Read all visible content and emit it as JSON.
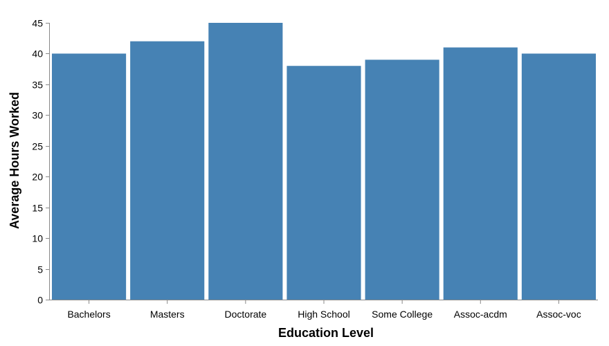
{
  "chart_data": {
    "type": "bar",
    "categories": [
      "Bachelors",
      "Masters",
      "Doctorate",
      "High School",
      "Some College",
      "Assoc-acdm",
      "Assoc-voc"
    ],
    "values": [
      40,
      42,
      45,
      38,
      39,
      41,
      40
    ],
    "xlabel": "Education Level",
    "ylabel": "Average Hours Worked",
    "ylim": [
      0,
      45
    ],
    "yticks": [
      0,
      5,
      10,
      15,
      20,
      25,
      30,
      35,
      40,
      45
    ],
    "bar_color": "#4682b4",
    "grid": false,
    "legend": "none"
  }
}
